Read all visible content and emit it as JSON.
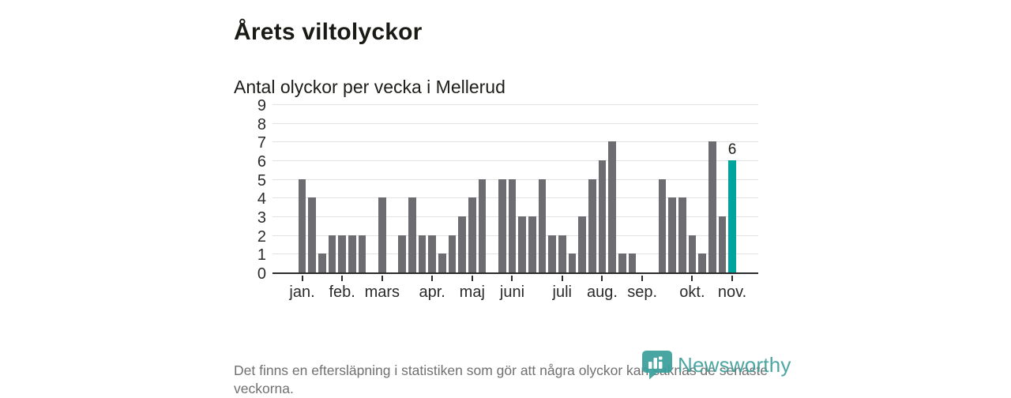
{
  "page": {
    "title": "Årets viltolyckor",
    "subtitle": "Antal olyckor per vecka i Mellerud",
    "footnote": "Det finns en eftersläpning i statistiken som gör att några olyckor kan saknas de senaste veckorna.",
    "logo_text": "Newsworthy"
  },
  "colors": {
    "bar": "#6c6c71",
    "highlight_bar": "#00a49e",
    "axis": "#2d2d2d",
    "gridline": "#e2e2e2",
    "footnote_text": "#707070",
    "logo_teal": "#41a09b"
  },
  "chart_data": {
    "type": "bar",
    "title": "Årets viltolyckor",
    "subtitle": "Antal olyckor per vecka i Mellerud",
    "x_unit": "vecka",
    "values": [
      5,
      4,
      1,
      2,
      2,
      2,
      2,
      0,
      4,
      0,
      2,
      4,
      2,
      2,
      1,
      2,
      3,
      4,
      5,
      0,
      5,
      5,
      3,
      3,
      5,
      2,
      2,
      1,
      3,
      5,
      6,
      7,
      1,
      1,
      0,
      0,
      5,
      4,
      4,
      2,
      1,
      7,
      3,
      6
    ],
    "highlight_last_bar": true,
    "last_bar_label": "6",
    "ylim": [
      0,
      9
    ],
    "yticks": [
      0,
      1,
      2,
      3,
      4,
      5,
      6,
      7,
      8,
      9
    ],
    "month_ticks": [
      {
        "week_index": 0,
        "label": "jan."
      },
      {
        "week_index": 4,
        "label": "feb."
      },
      {
        "week_index": 8,
        "label": "mars"
      },
      {
        "week_index": 13,
        "label": "apr."
      },
      {
        "week_index": 17,
        "label": "maj"
      },
      {
        "week_index": 21,
        "label": "juni"
      },
      {
        "week_index": 26,
        "label": "juli"
      },
      {
        "week_index": 30,
        "label": "aug."
      },
      {
        "week_index": 34,
        "label": "sep."
      },
      {
        "week_index": 39,
        "label": "okt."
      },
      {
        "week_index": 43,
        "label": "nov."
      }
    ],
    "grid": true,
    "legend": false
  }
}
